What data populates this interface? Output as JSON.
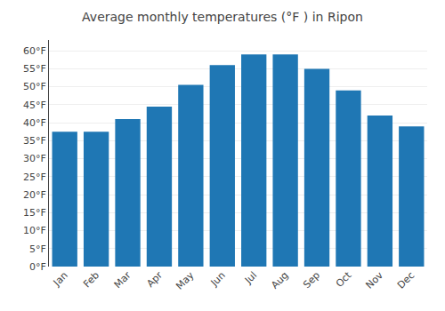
{
  "chart_data": {
    "type": "bar",
    "title": "Average monthly temperatures (°F ) in Ripon",
    "categories": [
      "Jan",
      "Feb",
      "Mar",
      "Apr",
      "May",
      "Jun",
      "Jul",
      "Aug",
      "Sep",
      "Oct",
      "Nov",
      "Dec"
    ],
    "values": [
      37.5,
      37.5,
      41.0,
      44.5,
      50.5,
      56.0,
      59.0,
      59.0,
      55.0,
      49.0,
      42.0,
      39.0
    ],
    "ylim": [
      0,
      63
    ],
    "yticks": [
      {
        "value": 0,
        "label": "0°F"
      },
      {
        "value": 5,
        "label": "5°F"
      },
      {
        "value": 10,
        "label": "10°F"
      },
      {
        "value": 15,
        "label": "15°F"
      },
      {
        "value": 20,
        "label": "20°F"
      },
      {
        "value": 25,
        "label": "25°F"
      },
      {
        "value": 30,
        "label": "30°F"
      },
      {
        "value": 35,
        "label": "35°F"
      },
      {
        "value": 40,
        "label": "40°F"
      },
      {
        "value": 45,
        "label": "45°F"
      },
      {
        "value": 50,
        "label": "50°F"
      },
      {
        "value": 55,
        "label": "55°F"
      },
      {
        "value": 60,
        "label": "60°F"
      }
    ],
    "grid": true
  }
}
